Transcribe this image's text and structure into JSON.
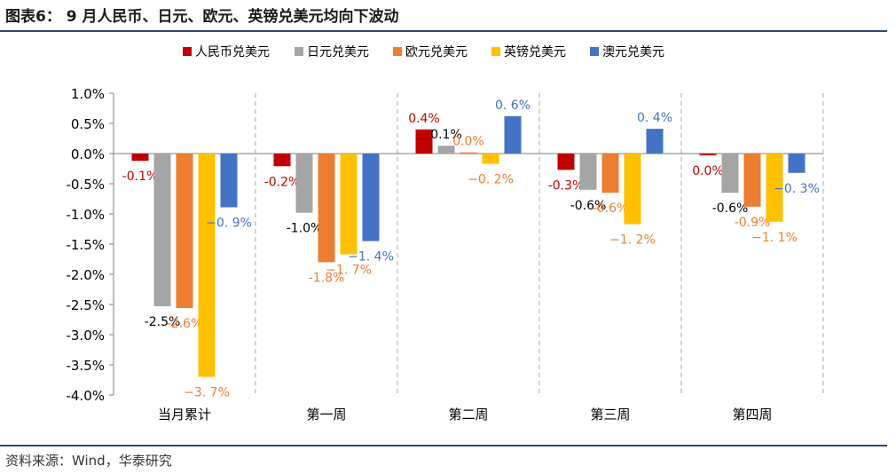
{
  "header": {
    "title": "图表6： 9 月人民币、日元、欧元、英镑兑美元均向下波动"
  },
  "footer": {
    "source": "资料来源：Wind，华泰研究"
  },
  "chart_data": {
    "type": "bar",
    "title": "图表6： 9 月人民币、日元、欧元、英镑兑美元均向下波动",
    "xlabel": "",
    "ylabel": "",
    "ylim": [
      -4.0,
      1.0
    ],
    "yticks": [
      1.0,
      0.5,
      0.0,
      -0.5,
      -1.0,
      -1.5,
      -2.0,
      -2.5,
      -3.0,
      -3.5,
      -4.0
    ],
    "ytick_labels": [
      "1.0%",
      "0.5%",
      "0.0%",
      "-0.5%",
      "-1.0%",
      "-1.5%",
      "-2.0%",
      "-2.5%",
      "-3.0%",
      "-3.5%",
      "-4.0%"
    ],
    "categories": [
      "当月累计",
      "第一周",
      "第二周",
      "第三周",
      "第四周"
    ],
    "legend_position": "top",
    "series": [
      {
        "name": "人民币兑美元",
        "color": "#c00000",
        "values": [
          -0.12,
          -0.21,
          0.4,
          -0.27,
          -0.03
        ],
        "labels": [
          "-0.1%",
          "-0.2%",
          "0.4%",
          "-0.3%",
          "0.0%"
        ]
      },
      {
        "name": "日元兑美元",
        "color": "#a5a5a5",
        "values": [
          -2.53,
          -0.98,
          0.13,
          -0.6,
          -0.65
        ],
        "labels": [
          "-2.5%",
          "-1.0%",
          "0.1%",
          "-0.6%",
          "-0.6%"
        ]
      },
      {
        "name": "欧元兑美元",
        "color": "#ed7d31",
        "values": [
          -2.56,
          -1.8,
          0.02,
          -0.65,
          -0.88
        ],
        "labels": [
          "-2.6%",
          "-1.8%",
          "0.0%",
          "-0.6%",
          "-0.9%"
        ]
      },
      {
        "name": "英镑兑美元",
        "color": "#ffc000",
        "values": [
          -3.7,
          -1.67,
          -0.17,
          -1.17,
          -1.13
        ],
        "labels": [
          "−3. 7%",
          "−1. 7%",
          "−0. 2%",
          "−1. 2%",
          "−1. 1%"
        ]
      },
      {
        "name": "澳元兑美元",
        "color": "#4472c4",
        "values": [
          -0.89,
          -1.45,
          0.62,
          0.41,
          -0.32
        ],
        "labels": [
          "−0. 9%",
          "−1. 4%",
          "0. 6%",
          "0. 4%",
          "−0. 3%"
        ]
      }
    ]
  }
}
